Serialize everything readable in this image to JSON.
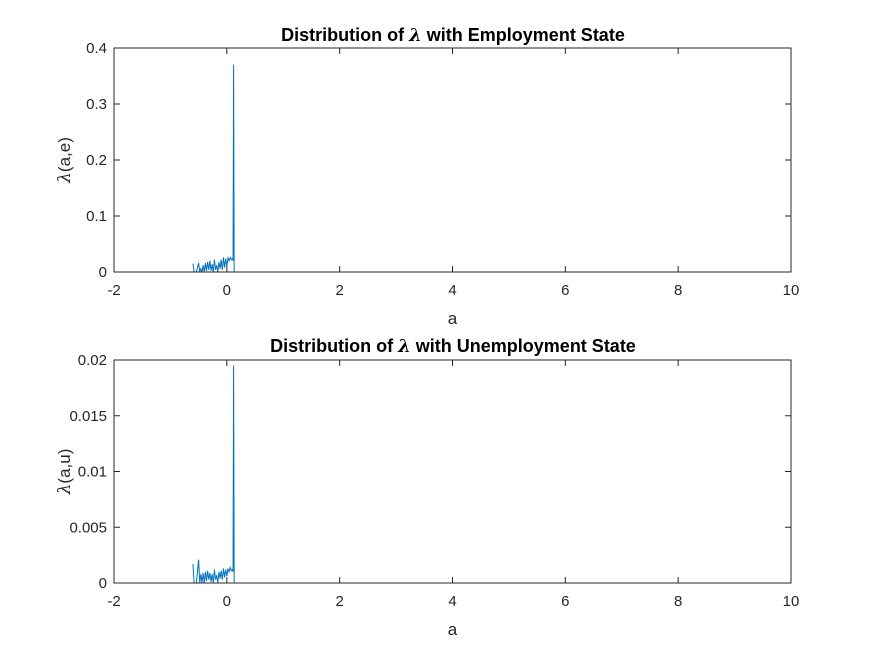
{
  "chart_data": [
    {
      "type": "line",
      "title_prefix": "Distribution of",
      "title_symbol": "λ",
      "title_suffix": "with Employment State",
      "xlabel": "a",
      "ylabel_symbol": "λ",
      "ylabel_args": "(a,e)",
      "xlim": [
        -2,
        10
      ],
      "ylim": [
        0,
        0.4
      ],
      "xticks": [
        -2,
        0,
        2,
        4,
        6,
        8,
        10
      ],
      "yticks": [
        0,
        0.1,
        0.2,
        0.3,
        0.4
      ],
      "ytick_labels": [
        "0",
        "0.1",
        "0.2",
        "0.3",
        "0.4"
      ],
      "grid": false,
      "color": "#0072bd",
      "series": [
        {
          "x": [
            -0.6,
            -0.58,
            -0.56,
            -0.54,
            -0.5,
            -0.48,
            -0.46,
            -0.44,
            -0.42,
            -0.4,
            -0.38,
            -0.36,
            -0.34,
            -0.32,
            -0.3,
            -0.28,
            -0.26,
            -0.24,
            -0.22,
            -0.2,
            -0.18,
            -0.16,
            -0.14,
            -0.12,
            -0.1,
            -0.08,
            -0.06,
            -0.04,
            -0.02,
            0.0,
            0.02,
            0.04,
            0.06,
            0.08,
            0.1,
            0.11,
            0.12,
            0.13,
            0.14,
            1,
            2,
            3,
            4,
            5,
            6,
            7,
            8,
            9,
            9.5
          ],
          "y": [
            0.015,
            0.0,
            0.0,
            0.0,
            0.016,
            0.0,
            0.006,
            0.0,
            0.012,
            0.0,
            0.016,
            0.002,
            0.018,
            0.004,
            0.02,
            0.002,
            0.014,
            0.0,
            0.022,
            0.004,
            0.012,
            0.0,
            0.018,
            0.006,
            0.022,
            0.004,
            0.026,
            0.008,
            0.024,
            0.01,
            0.025,
            0.02,
            0.026,
            0.022,
            0.024,
            0.02,
            0.37,
            0.0,
            0.0,
            0.0,
            0.0,
            0.0,
            0.0,
            0.0,
            0.0,
            0.0,
            0.0,
            0.0,
            0.0
          ]
        }
      ]
    },
    {
      "type": "line",
      "title_prefix": "Distribution of",
      "title_symbol": "λ",
      "title_suffix": "with Unemployment State",
      "xlabel": "a",
      "ylabel_symbol": "λ",
      "ylabel_args": "(a,u)",
      "xlim": [
        -2,
        10
      ],
      "ylim": [
        0,
        0.02
      ],
      "xticks": [
        -2,
        0,
        2,
        4,
        6,
        8,
        10
      ],
      "yticks": [
        0,
        0.005,
        0.01,
        0.015,
        0.02
      ],
      "ytick_labels": [
        "0",
        "0.005",
        "0.01",
        "0.015",
        "0.02"
      ],
      "grid": false,
      "color": "#0072bd",
      "series": [
        {
          "x": [
            -0.6,
            -0.58,
            -0.56,
            -0.54,
            -0.5,
            -0.48,
            -0.46,
            -0.44,
            -0.42,
            -0.4,
            -0.38,
            -0.36,
            -0.34,
            -0.32,
            -0.3,
            -0.28,
            -0.26,
            -0.24,
            -0.22,
            -0.2,
            -0.18,
            -0.16,
            -0.14,
            -0.12,
            -0.1,
            -0.08,
            -0.06,
            -0.04,
            -0.02,
            0.0,
            0.02,
            0.04,
            0.06,
            0.08,
            0.1,
            0.11,
            0.12,
            0.13,
            0.14,
            1,
            2,
            3,
            4,
            5,
            6,
            7,
            8,
            9,
            9.5
          ],
          "y": [
            0.0017,
            0.0,
            0.0,
            0.0,
            0.0021,
            0.0,
            0.0008,
            0.0,
            0.0009,
            0.0,
            0.001,
            0.0002,
            0.0011,
            0.0003,
            0.0009,
            0.0001,
            0.0008,
            0.0,
            0.0012,
            0.0003,
            0.0007,
            0.0,
            0.001,
            0.0004,
            0.0011,
            0.0003,
            0.0013,
            0.0005,
            0.0012,
            0.0006,
            0.0013,
            0.001,
            0.0014,
            0.0011,
            0.0012,
            0.001,
            0.0195,
            0.0,
            0.0,
            0.0,
            0.0,
            0.0,
            0.0,
            0.0,
            0.0,
            0.0,
            0.0,
            0.0,
            0.0
          ]
        }
      ]
    }
  ]
}
